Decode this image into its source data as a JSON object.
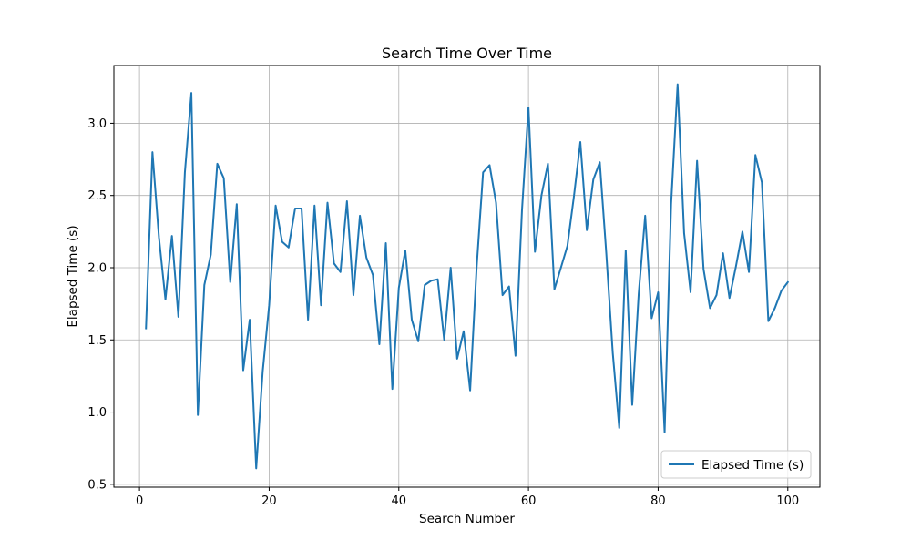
{
  "chart_data": {
    "type": "line",
    "title": "Search Time Over Time",
    "xlabel": "Search Number",
    "ylabel": "Elapsed Time (s)",
    "xlim": [
      -3.95,
      104.95
    ],
    "ylim": [
      0.48,
      3.4
    ],
    "xticks": [
      0,
      20,
      40,
      60,
      80,
      100
    ],
    "yticks": [
      0.5,
      1.0,
      1.5,
      2.0,
      2.5,
      3.0
    ],
    "xtick_labels": [
      "0",
      "20",
      "40",
      "60",
      "80",
      "100"
    ],
    "ytick_labels": [
      "0.5",
      "1.0",
      "1.5",
      "2.0",
      "2.5",
      "3.0"
    ],
    "grid": true,
    "legend_position": "lower right",
    "series": [
      {
        "name": "Elapsed Time (s)",
        "color": "#1f77b4",
        "x": [
          1,
          2,
          3,
          4,
          5,
          6,
          7,
          8,
          9,
          10,
          11,
          12,
          13,
          14,
          15,
          16,
          17,
          18,
          19,
          20,
          21,
          22,
          23,
          24,
          25,
          26,
          27,
          28,
          29,
          30,
          31,
          32,
          33,
          34,
          35,
          36,
          37,
          38,
          39,
          40,
          41,
          42,
          43,
          44,
          45,
          46,
          47,
          48,
          49,
          50,
          51,
          52,
          53,
          54,
          55,
          56,
          57,
          58,
          59,
          60,
          61,
          62,
          63,
          64,
          65,
          66,
          67,
          68,
          69,
          70,
          71,
          72,
          73,
          74,
          75,
          76,
          77,
          78,
          79,
          80,
          81,
          82,
          83,
          84,
          85,
          86,
          87,
          88,
          89,
          90,
          91,
          92,
          93,
          94,
          95,
          96,
          97,
          98,
          99,
          100
        ],
        "values": [
          1.58,
          2.8,
          2.21,
          1.78,
          2.22,
          1.66,
          2.66,
          3.21,
          0.98,
          1.88,
          2.09,
          2.72,
          2.62,
          1.9,
          2.44,
          1.29,
          1.64,
          0.61,
          1.28,
          1.74,
          2.43,
          2.18,
          2.14,
          2.41,
          2.41,
          1.64,
          2.43,
          1.74,
          2.45,
          2.03,
          1.97,
          2.46,
          1.81,
          2.36,
          2.07,
          1.95,
          1.47,
          2.17,
          1.16,
          1.86,
          2.12,
          1.64,
          1.49,
          1.88,
          1.91,
          1.92,
          1.5,
          2.0,
          1.37,
          1.56,
          1.15,
          2.0,
          2.66,
          2.71,
          2.45,
          1.81,
          1.87,
          1.39,
          2.4,
          3.11,
          2.11,
          2.5,
          2.72,
          1.85,
          2.0,
          2.15,
          2.49,
          2.87,
          2.26,
          2.61,
          2.73,
          2.1,
          1.41,
          0.89,
          2.12,
          1.05,
          1.82,
          2.36,
          1.65,
          1.83,
          0.86,
          2.44,
          3.27,
          2.24,
          1.83,
          2.74,
          1.99,
          1.72,
          1.81,
          2.1,
          1.79,
          2.01,
          2.25,
          1.97,
          2.78,
          2.59,
          1.63,
          1.72,
          1.84,
          1.9
        ]
      }
    ]
  }
}
